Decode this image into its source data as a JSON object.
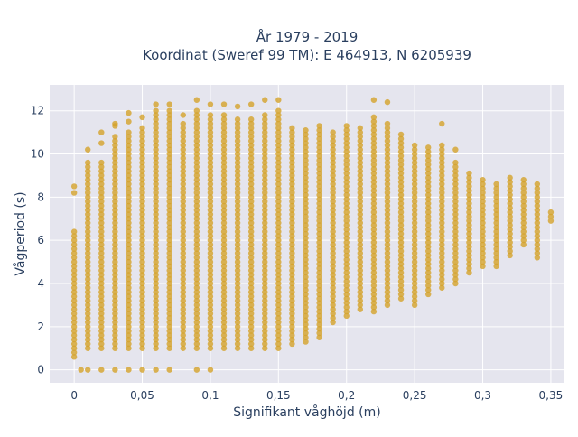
{
  "chart_data": {
    "type": "scatter",
    "title_line1": "År 1979 - 2019",
    "title_line2": "Koordinat (Sweref 99 TM): E 464913, N 6205939",
    "xlabel": "Signifikant våghöjd (m)",
    "ylabel": "Vågperiod (s)",
    "xlim": [
      -0.018,
      0.36
    ],
    "ylim": [
      -0.6,
      13.2
    ],
    "xticks": [
      0,
      0.05,
      0.1,
      0.15,
      0.2,
      0.25,
      0.3,
      0.35
    ],
    "xtick_labels": [
      "0",
      "0,05",
      "0,1",
      "0,15",
      "0,2",
      "0,25",
      "0,3",
      "0,35"
    ],
    "yticks": [
      0,
      2,
      4,
      6,
      8,
      10,
      12
    ],
    "ytick_labels": [
      "0",
      "2",
      "4",
      "6",
      "8",
      "10",
      "12"
    ],
    "grid": true,
    "legend": "none",
    "marker_color": "#d4a32a",
    "plot_bg": "#e5e5ee",
    "columns": [
      {
        "x": 0.0,
        "ymin": 0.6,
        "ymax": 6.5,
        "extra": [
          8.2,
          8.5
        ]
      },
      {
        "x": 0.005,
        "ymin": 0.0,
        "ymax": 0.0,
        "extra": []
      },
      {
        "x": 0.01,
        "ymin": 1.0,
        "ymax": 9.6,
        "extra": [
          10.2,
          0.0
        ]
      },
      {
        "x": 0.02,
        "ymin": 1.0,
        "ymax": 9.7,
        "extra": [
          10.5,
          11.0,
          0.0
        ]
      },
      {
        "x": 0.03,
        "ymin": 1.0,
        "ymax": 10.8,
        "extra": [
          11.3,
          11.4,
          0.0
        ]
      },
      {
        "x": 0.04,
        "ymin": 1.0,
        "ymax": 11.0,
        "extra": [
          11.5,
          11.9,
          0.0
        ]
      },
      {
        "x": 0.05,
        "ymin": 1.0,
        "ymax": 11.2,
        "extra": [
          11.7,
          0.0
        ]
      },
      {
        "x": 0.06,
        "ymin": 1.0,
        "ymax": 12.0,
        "extra": [
          12.3,
          0.0
        ]
      },
      {
        "x": 0.07,
        "ymin": 1.0,
        "ymax": 12.0,
        "extra": [
          12.3,
          0.0
        ]
      },
      {
        "x": 0.08,
        "ymin": 1.0,
        "ymax": 11.4,
        "extra": [
          11.8
        ]
      },
      {
        "x": 0.09,
        "ymin": 1.0,
        "ymax": 12.0,
        "extra": [
          12.5,
          0.0
        ]
      },
      {
        "x": 0.1,
        "ymin": 1.0,
        "ymax": 11.8,
        "extra": [
          12.3,
          0.0
        ]
      },
      {
        "x": 0.11,
        "ymin": 1.0,
        "ymax": 11.8,
        "extra": [
          12.3
        ]
      },
      {
        "x": 0.12,
        "ymin": 1.0,
        "ymax": 11.6,
        "extra": [
          12.2
        ]
      },
      {
        "x": 0.13,
        "ymin": 1.0,
        "ymax": 11.6,
        "extra": [
          12.3
        ]
      },
      {
        "x": 0.14,
        "ymin": 1.0,
        "ymax": 11.8,
        "extra": [
          12.5
        ]
      },
      {
        "x": 0.15,
        "ymin": 1.0,
        "ymax": 12.0,
        "extra": [
          12.5
        ]
      },
      {
        "x": 0.16,
        "ymin": 1.2,
        "ymax": 11.3,
        "extra": []
      },
      {
        "x": 0.17,
        "ymin": 1.3,
        "ymax": 11.2,
        "extra": []
      },
      {
        "x": 0.18,
        "ymin": 1.5,
        "ymax": 11.3,
        "extra": []
      },
      {
        "x": 0.19,
        "ymin": 2.2,
        "ymax": 11.0,
        "extra": []
      },
      {
        "x": 0.2,
        "ymin": 2.5,
        "ymax": 11.4,
        "extra": []
      },
      {
        "x": 0.21,
        "ymin": 2.8,
        "ymax": 11.3,
        "extra": []
      },
      {
        "x": 0.22,
        "ymin": 2.7,
        "ymax": 11.8,
        "extra": [
          12.5
        ]
      },
      {
        "x": 0.23,
        "ymin": 3.0,
        "ymax": 11.5,
        "extra": [
          12.4
        ]
      },
      {
        "x": 0.24,
        "ymin": 3.3,
        "ymax": 11.0,
        "extra": []
      },
      {
        "x": 0.25,
        "ymin": 3.0,
        "ymax": 10.4,
        "extra": []
      },
      {
        "x": 0.26,
        "ymin": 3.5,
        "ymax": 10.3,
        "extra": []
      },
      {
        "x": 0.27,
        "ymin": 3.8,
        "ymax": 10.5,
        "extra": [
          11.4
        ]
      },
      {
        "x": 0.28,
        "ymin": 4.0,
        "ymax": 9.7,
        "extra": [
          10.2
        ]
      },
      {
        "x": 0.29,
        "ymin": 4.5,
        "ymax": 9.2,
        "extra": []
      },
      {
        "x": 0.3,
        "ymin": 4.8,
        "ymax": 8.8,
        "extra": []
      },
      {
        "x": 0.31,
        "ymin": 4.8,
        "ymax": 8.6,
        "extra": []
      },
      {
        "x": 0.32,
        "ymin": 5.3,
        "ymax": 9.0,
        "extra": []
      },
      {
        "x": 0.33,
        "ymin": 5.8,
        "ymax": 8.8,
        "extra": []
      },
      {
        "x": 0.34,
        "ymin": 5.2,
        "ymax": 8.7,
        "extra": []
      },
      {
        "x": 0.35,
        "ymin": 6.9,
        "ymax": 7.4,
        "extra": []
      }
    ]
  }
}
